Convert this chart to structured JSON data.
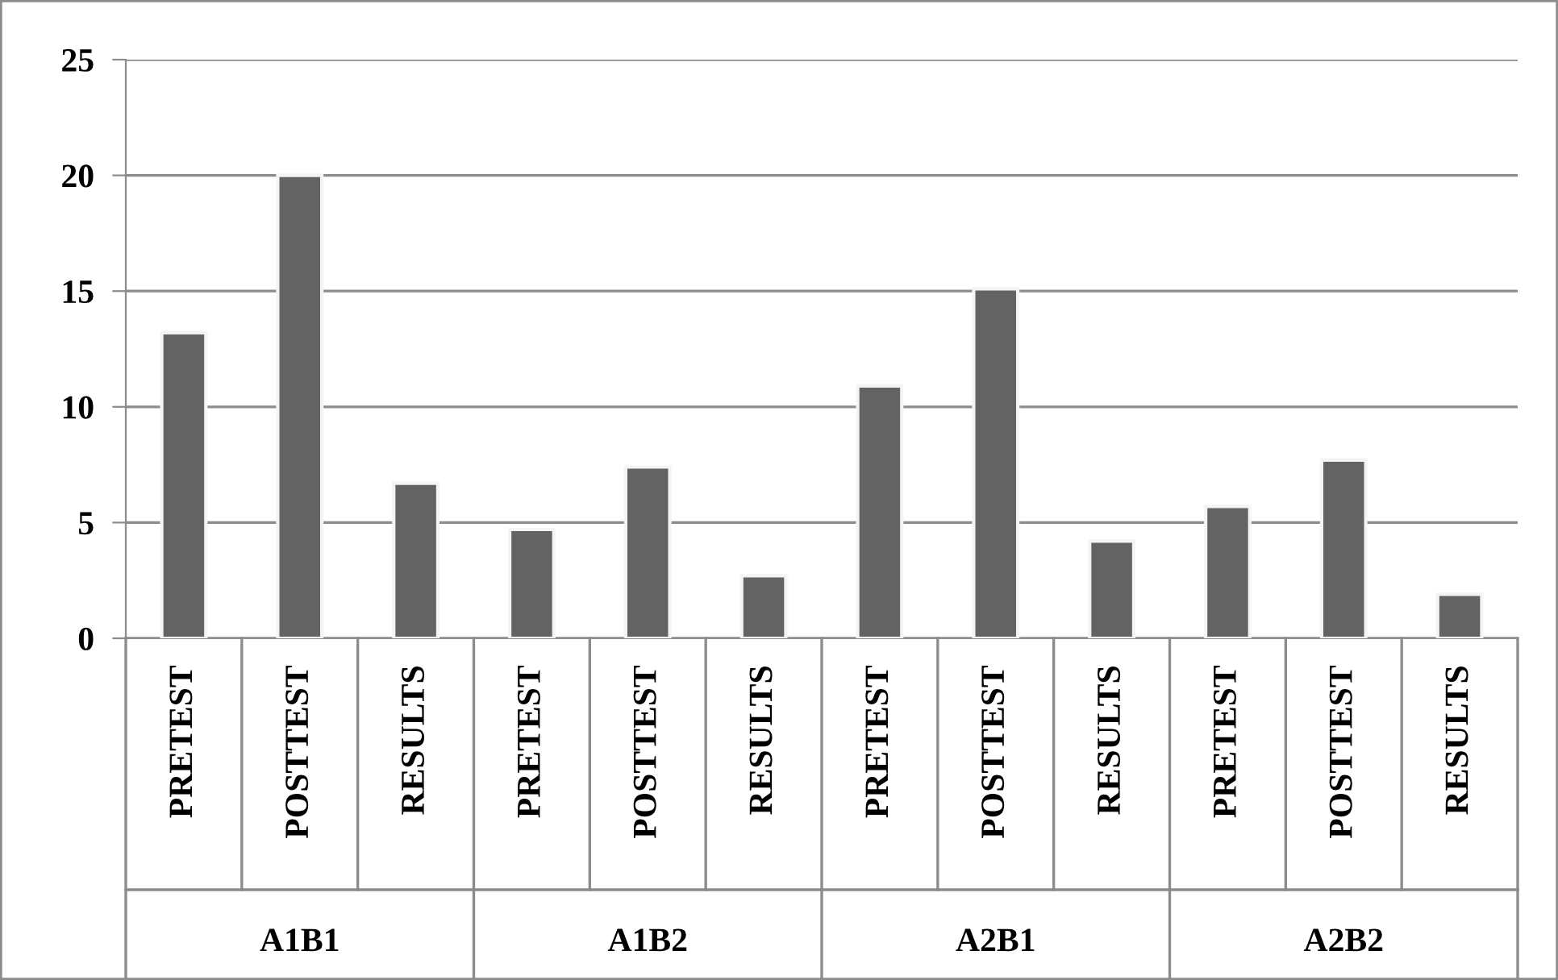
{
  "chart_data": {
    "type": "bar",
    "categories": [
      "PRETEST",
      "POSTTEST",
      "RESULTS",
      "PRETEST",
      "POSTTEST",
      "RESULTS",
      "PRETEST",
      "POSTTEST",
      "RESULTS",
      "PRETEST",
      "POSTTEST",
      "RESULTS"
    ],
    "values": [
      13.2,
      20,
      6.7,
      4.7,
      7.4,
      2.7,
      10.9,
      15.1,
      4.2,
      5.7,
      7.7,
      1.9
    ],
    "color": "#636363",
    "ylim": [
      0,
      25
    ],
    "yticks": [
      0,
      5,
      10,
      15,
      20,
      25
    ],
    "grid": "y",
    "annotations": [
      "A1B1",
      "A1B2",
      "A2B1",
      "A2B2"
    ]
  }
}
